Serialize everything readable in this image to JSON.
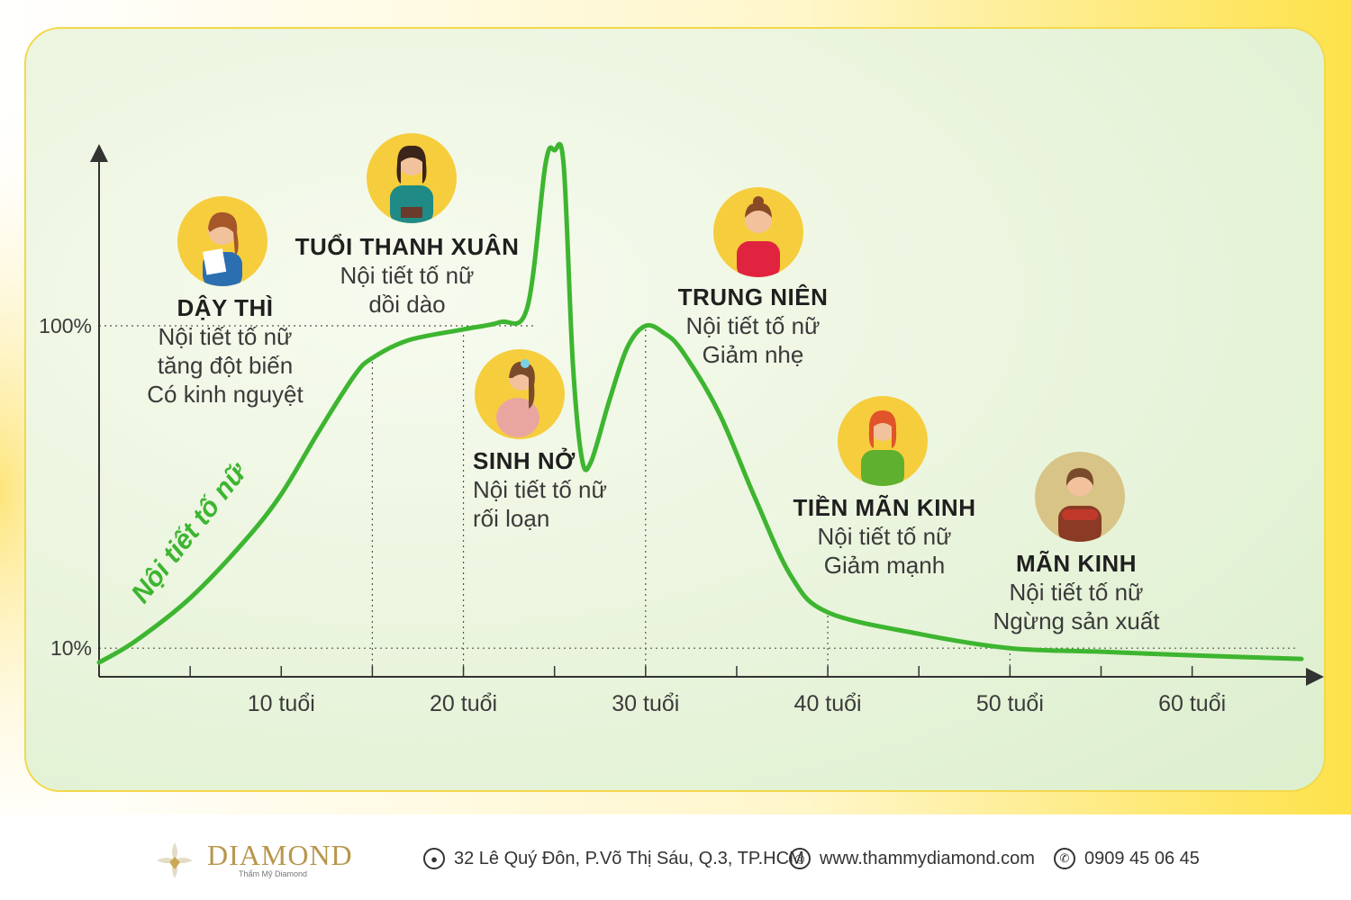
{
  "chart_data": {
    "type": "line",
    "xlabel": "",
    "ylabel": "",
    "x_tick_labels": [
      "10 tuổi",
      "20 tuổi",
      "30 tuổi",
      "40 tuổi",
      "50 tuổi",
      "60 tuổi"
    ],
    "x_tick_values": [
      10,
      20,
      30,
      40,
      50,
      60
    ],
    "y_tick_labels": [
      "100%",
      "10%"
    ],
    "y_tick_values": [
      100,
      10
    ],
    "grid": false,
    "series": [
      {
        "name": "Nội tiết tố nữ",
        "color": "#3db530",
        "x": [
          0,
          2,
          5,
          8,
          10,
          12,
          14,
          15,
          17,
          20,
          22,
          23.5,
          24.5,
          25,
          25.5,
          26,
          26.5,
          27,
          28,
          29,
          30,
          31,
          32,
          34,
          36,
          38,
          40,
          45,
          50,
          55,
          60,
          66
        ],
        "y": [
          6,
          12,
          24,
          40,
          53,
          70,
          86,
          91,
          96,
          99,
          101,
          105,
          145,
          149,
          145,
          90,
          63,
          62,
          79,
          94,
          100,
          98,
          93,
          76,
          52,
          30,
          20,
          14,
          10,
          9,
          8,
          7
        ]
      }
    ],
    "ylim": [
      0,
      160
    ],
    "xlim": [
      0,
      66
    ],
    "reference_lines": [
      {
        "axis": "y",
        "value": 100,
        "style": "dotted"
      },
      {
        "axis": "y",
        "value": 10,
        "style": "dotted"
      },
      {
        "axis": "x",
        "value": 15,
        "style": "dotted"
      },
      {
        "axis": "x",
        "value": 20,
        "style": "dotted"
      },
      {
        "axis": "x",
        "value": 30,
        "style": "dotted"
      },
      {
        "axis": "x",
        "value": 40,
        "style": "dotted"
      },
      {
        "axis": "x",
        "value": 50,
        "style": "dotted"
      }
    ]
  },
  "curve_label": "Nội tiết tố nữ",
  "stages": [
    {
      "id": "day-thi",
      "title": "DẬY THÌ",
      "lines": [
        "Nội tiết tố nữ",
        "tăng đột biến",
        "Có kinh nguyệt"
      ],
      "avatar_bg": "#f6cd3d",
      "shirt": "#2c6fb0"
    },
    {
      "id": "thanh-xuan",
      "title": "TUỔI THANH XUÂN",
      "lines": [
        "Nội tiết tố nữ",
        "dồi dào"
      ],
      "avatar_bg": "#f6cd3d",
      "shirt": "#1f8a86"
    },
    {
      "id": "sinh-no",
      "title": "SINH NỞ",
      "lines": [
        "Nội tiết tố nữ",
        "rối loạn"
      ],
      "avatar_bg": "#f6cd3d",
      "shirt": "#e9a6a0"
    },
    {
      "id": "trung-nien",
      "title": "TRUNG NIÊN",
      "lines": [
        "Nội tiết tố nữ",
        "Giảm nhẹ"
      ],
      "avatar_bg": "#f6cd3d",
      "shirt": "#e0243f"
    },
    {
      "id": "tien-man-kinh",
      "title": "TIỀN MÃN KINH",
      "lines": [
        "Nội tiết tố nữ",
        "Giảm mạnh"
      ],
      "avatar_bg": "#f6cd3d",
      "shirt": "#5fb02e"
    },
    {
      "id": "man-kinh",
      "title": "MÃN KINH",
      "lines": [
        "Nội tiết tố nữ",
        "Ngừng sản xuất"
      ],
      "avatar_bg": "#d8c486",
      "shirt": "#8a3a25"
    }
  ],
  "footer": {
    "brand": "DIAMOND",
    "brand_sub": "Thẩm Mỹ Diamond",
    "address": "32 Lê Quý Đôn, P.Võ Thị Sáu, Q.3, TP.HCM",
    "website": "www.thammydiamond.com",
    "phone": "0909 45 06 45",
    "address_icon": "location-pin-icon",
    "website_icon": "globe-icon",
    "phone_icon": "phone-icon"
  },
  "colors": {
    "curve": "#3db530",
    "accent": "#f3d84a",
    "brand": "#b8964d"
  }
}
